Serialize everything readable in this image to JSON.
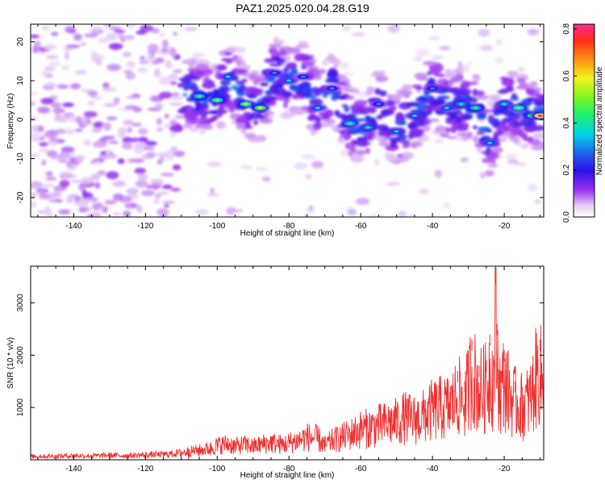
{
  "title": "PAZ1.2025.020.04.28.G19",
  "colors": {
    "line": "#ef3030",
    "axis": "#000000",
    "spectrogram_faint": "#dcb8f2",
    "spectrogram_mid": "#9b46e6",
    "spectrogram_strong": "#2d1ae6"
  },
  "chart_data": [
    {
      "type": "heatmap",
      "title": "",
      "xlabel": "Height of straight line (km)",
      "ylabel": "Frequency (Hz)",
      "xlim": [
        -152,
        -9
      ],
      "ylim": [
        -25,
        24.5
      ],
      "xticks": [
        -140,
        -120,
        -100,
        -80,
        -60,
        -40,
        -20
      ],
      "yticks": [
        -20,
        -10,
        0,
        10,
        20
      ],
      "colorbar": {
        "label": "Normalized spectral amplitude",
        "range": [
          0,
          0.82
        ],
        "ticks": [
          0.0,
          0.2,
          0.4,
          0.6,
          0.8
        ],
        "colormap": "rainbow (white-violet-blue-cyan-green-yellow-red)"
      },
      "ridge": {
        "description": "main spectral ridge (frequency vs height)",
        "points": [
          {
            "x": -105,
            "y": 6,
            "amp": 0.45
          },
          {
            "x": -100,
            "y": 5,
            "amp": 0.5
          },
          {
            "x": -97,
            "y": 11,
            "amp": 0.35
          },
          {
            "x": -92,
            "y": 4,
            "amp": 0.55
          },
          {
            "x": -88,
            "y": 3,
            "amp": 0.6
          },
          {
            "x": -84,
            "y": 12,
            "amp": 0.3
          },
          {
            "x": -80,
            "y": 10,
            "amp": 0.35
          },
          {
            "x": -76,
            "y": 11,
            "amp": 0.3
          },
          {
            "x": -72,
            "y": 3,
            "amp": 0.35
          },
          {
            "x": -68,
            "y": 8,
            "amp": 0.3
          },
          {
            "x": -63,
            "y": -1,
            "amp": 0.45
          },
          {
            "x": -58,
            "y": -2,
            "amp": 0.4
          },
          {
            "x": -55,
            "y": 4,
            "amp": 0.3
          },
          {
            "x": -50,
            "y": -3,
            "amp": 0.35
          },
          {
            "x": -45,
            "y": 1,
            "amp": 0.35
          },
          {
            "x": -40,
            "y": 8,
            "amp": 0.3
          },
          {
            "x": -36,
            "y": 3,
            "amp": 0.35
          },
          {
            "x": -32,
            "y": 4,
            "amp": 0.4
          },
          {
            "x": -28,
            "y": 3,
            "amp": 0.45
          },
          {
            "x": -24,
            "y": -6,
            "amp": 0.35
          },
          {
            "x": -20,
            "y": 4,
            "amp": 0.4
          },
          {
            "x": -16,
            "y": 3,
            "amp": 0.5
          },
          {
            "x": -12,
            "y": 1,
            "amp": 0.6
          },
          {
            "x": -10,
            "y": 1,
            "amp": 0.82
          }
        ]
      },
      "noise_region": {
        "x_from": -152,
        "x_to": -110,
        "y_from": -25,
        "y_to": 24.5,
        "amp": 0.1
      }
    },
    {
      "type": "line",
      "title": "",
      "xlabel": "Height of straight line (km)",
      "ylabel": "SNR (10 * v/v)",
      "xlim": [
        -152,
        -9
      ],
      "ylim": [
        0,
        3700
      ],
      "xticks": [
        -140,
        -120,
        -100,
        -80,
        -60,
        -40,
        -20
      ],
      "yticks": [
        1000,
        2000,
        3000
      ],
      "series": [
        {
          "color": "#ef3030",
          "x": [
            -152,
            -145,
            -140,
            -135,
            -130,
            -125,
            -120,
            -115,
            -110,
            -108,
            -105,
            -102,
            -100,
            -97,
            -95,
            -92,
            -90,
            -87,
            -85,
            -82,
            -80,
            -77,
            -75,
            -72,
            -70,
            -68,
            -65,
            -62,
            -60,
            -57,
            -55,
            -52,
            -50,
            -48,
            -45,
            -42,
            -40,
            -38,
            -35,
            -33,
            -31,
            -29,
            -27,
            -25,
            -24,
            -23,
            -22.5,
            -22,
            -21,
            -20,
            -19,
            -17,
            -15,
            -13,
            -12,
            -11,
            -10,
            -9
          ],
          "y": [
            90,
            95,
            110,
            100,
            120,
            110,
            130,
            140,
            180,
            220,
            250,
            300,
            380,
            420,
            360,
            400,
            350,
            420,
            450,
            400,
            450,
            520,
            600,
            560,
            380,
            500,
            600,
            700,
            800,
            850,
            900,
            950,
            1000,
            1100,
            1050,
            1150,
            1300,
            1350,
            1400,
            1700,
            1500,
            2300,
            1800,
            1900,
            2400,
            2000,
            3650,
            2600,
            1700,
            2100,
            1800,
            1500,
            1400,
            1550,
            1800,
            2200,
            2300,
            1700
          ]
        }
      ]
    }
  ]
}
